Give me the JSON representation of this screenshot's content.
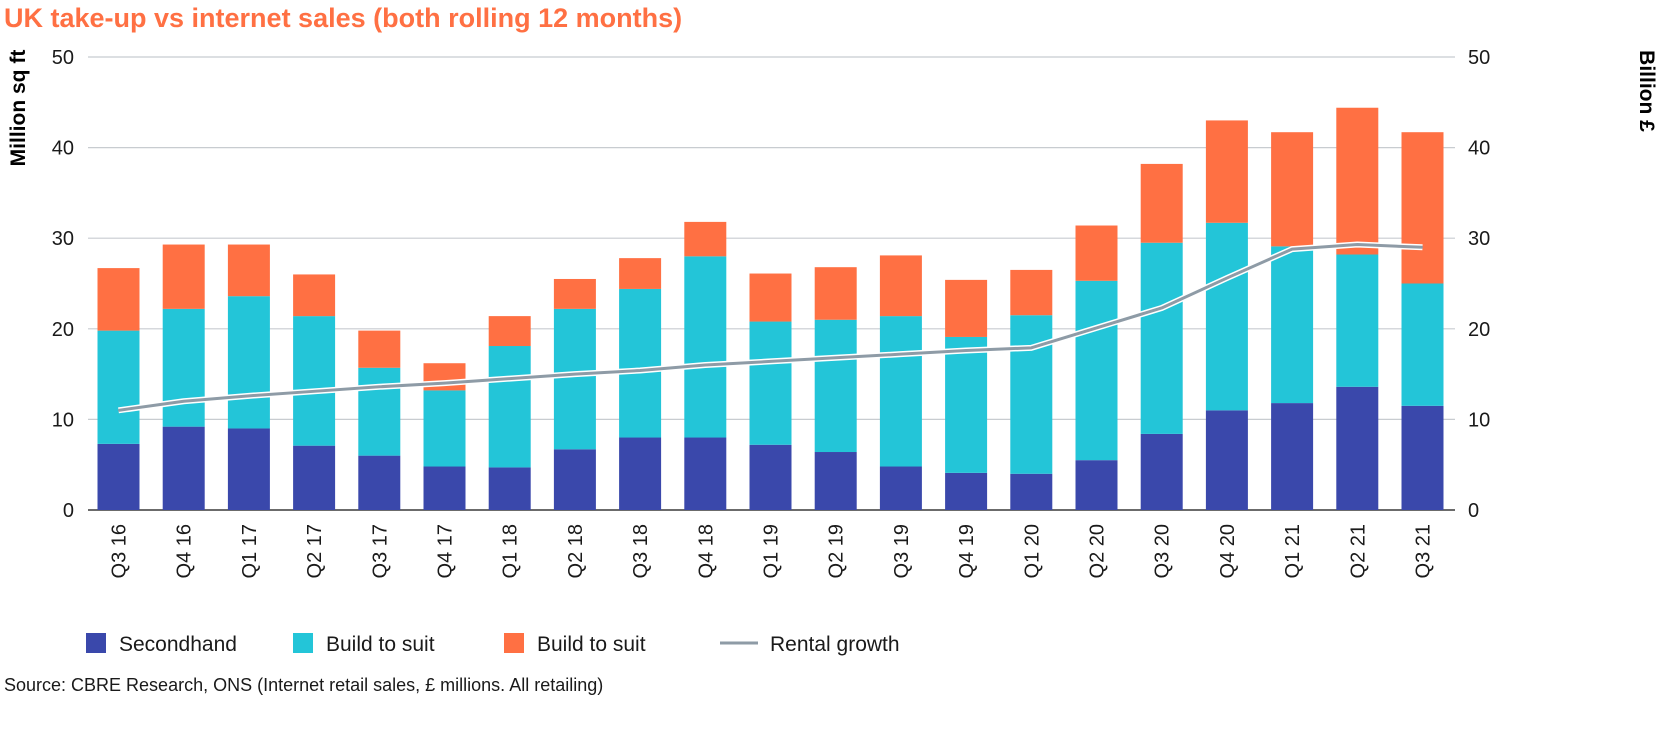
{
  "chart_data": {
    "type": "bar",
    "stacked": true,
    "title": "UK take-up vs internet sales (both rolling 12 months)",
    "ylabel_left": "Million sq ft",
    "ylabel_right": "Billion £",
    "ylim": [
      0,
      50
    ],
    "yticks": [
      "0",
      "10",
      "20",
      "30",
      "40",
      "50"
    ],
    "grid": true,
    "legend_position": "bottom",
    "categories": [
      "Q3 16",
      "Q4 16",
      "Q1 17",
      "Q2 17",
      "Q3 17",
      "Q4 17",
      "Q1 18",
      "Q2 18",
      "Q3 18",
      "Q4 18",
      "Q1 19",
      "Q2 19",
      "Q3 19",
      "Q4 19",
      "Q1 20",
      "Q2 20",
      "Q3 20",
      "Q4 20",
      "Q1 21",
      "Q2 21",
      "Q3 21"
    ],
    "series": [
      {
        "name": "Secondhand",
        "color": "#3a48ab",
        "kind": "bar",
        "values": [
          7.3,
          9.2,
          9.0,
          7.1,
          6.0,
          4.8,
          4.7,
          6.7,
          8.0,
          8.0,
          7.2,
          6.4,
          4.8,
          4.1,
          4.0,
          5.5,
          8.4,
          11.0,
          11.8,
          13.6,
          11.5
        ]
      },
      {
        "name": "Build to suit",
        "color": "#23c5d8",
        "kind": "bar",
        "values": [
          12.5,
          13.0,
          14.6,
          14.3,
          9.7,
          8.4,
          13.4,
          15.5,
          16.4,
          20.0,
          13.6,
          14.6,
          16.6,
          15.0,
          17.5,
          19.8,
          21.1,
          20.7,
          17.3,
          14.6,
          13.5
        ]
      },
      {
        "name": "Build to suit",
        "color": "#ff7043",
        "kind": "bar",
        "values": [
          6.9,
          7.1,
          5.7,
          4.6,
          4.1,
          3.0,
          3.3,
          3.3,
          3.4,
          3.8,
          5.3,
          5.8,
          6.7,
          6.3,
          5.0,
          6.1,
          8.7,
          11.3,
          12.6,
          16.2,
          16.7
        ]
      },
      {
        "name": "Rental growth",
        "color": "#8e9ba6",
        "kind": "line",
        "values": [
          11.0,
          12.0,
          12.6,
          13.1,
          13.6,
          14.0,
          14.5,
          15.0,
          15.4,
          16.0,
          16.4,
          16.8,
          17.2,
          17.6,
          17.9,
          20.1,
          22.3,
          25.6,
          28.8,
          29.3,
          29.0
        ]
      }
    ],
    "source": "Source: CBRE Research, ONS (Internet retail sales, £ millions. All retailing)",
    "colors": {
      "title": "#ff7043",
      "grid": "#c8ccd0",
      "axis": "#3a3a3a"
    }
  }
}
